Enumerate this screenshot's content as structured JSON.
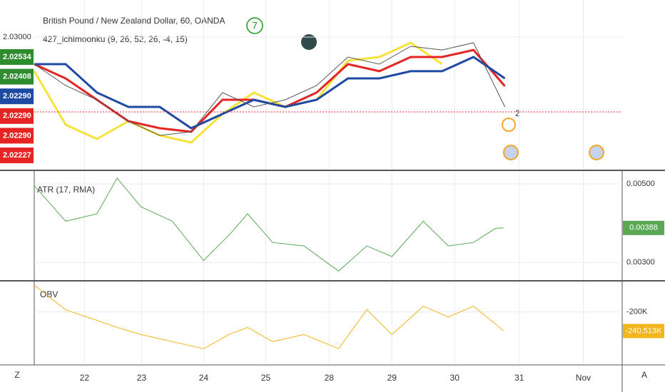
{
  "chart_data": [
    {
      "type": "line",
      "title": "British Pound / New Zealand Dollar, 60, OANDA",
      "subtitle": "427_ichimoonku (9, 26, 52, 26, -4, 15)",
      "xlim": [
        0.2,
        9.57
      ],
      "xticks": [
        {
          "value": 1,
          "label": "22"
        },
        {
          "value": 1.91,
          "label": "23"
        },
        {
          "value": 2.9,
          "label": "24"
        },
        {
          "value": 3.89,
          "label": "25"
        },
        {
          "value": 4.9,
          "label": "28"
        },
        {
          "value": 5.9,
          "label": "29"
        },
        {
          "value": 6.9,
          "label": "30"
        },
        {
          "value": 7.93,
          "label": "31"
        },
        {
          "value": 8.95,
          "label": "Nov"
        }
      ],
      "ylim": [
        2.01742,
        2.03352
      ],
      "yticks": [
        {
          "value": 2.03,
          "label": "2.03000"
        }
      ],
      "x": [
        0.2,
        0.7,
        1.2,
        1.7,
        2.2,
        2.7,
        3.2,
        3.7,
        4.2,
        4.7,
        5.2,
        5.7,
        6.2,
        6.7,
        7.2,
        7.7
      ],
      "series": [
        {
          "color": "#f5e23a",
          "values": [
            2.02676,
            2.02169,
            2.02033,
            2.02202,
            2.02067,
            2.01999,
            2.0227,
            2.02473,
            2.02337,
            2.02405,
            2.02777,
            2.02811,
            2.02946,
            2.02743,
            null,
            null
          ]
        },
        {
          "color": "#e52424",
          "values": [
            2.02743,
            2.02608,
            2.02405,
            2.02202,
            2.02135,
            2.02101,
            2.02405,
            2.02405,
            2.02337,
            2.02473,
            2.02743,
            2.02676,
            2.02811,
            2.02811,
            2.02878,
            2.02534
          ]
        },
        {
          "color": "#1e4aa3",
          "values": [
            2.02743,
            2.02743,
            2.02473,
            2.02337,
            2.02337,
            2.02135,
            2.0227,
            2.02405,
            2.02337,
            2.02405,
            2.02608,
            2.02608,
            2.02676,
            2.02676,
            2.02811,
            2.02608
          ]
        },
        {
          "color": "#555555",
          "values": [
            2.02743,
            2.0254,
            2.02405,
            2.02202,
            2.02067,
            2.02101,
            2.02473,
            2.02337,
            2.02405,
            2.0254,
            2.02811,
            2.02743,
            2.02912,
            2.02878,
            2.02946,
            2.02337
          ]
        }
      ],
      "price_labels": [
        {
          "value": 2.02534,
          "label": "2.02534",
          "color": "#2e8b2e"
        },
        {
          "value": 2.02408,
          "label": "2.02408",
          "color": "#2e8b2e"
        },
        {
          "value": 2.0229,
          "label": "2.02290",
          "color": "#1e4aa3"
        },
        {
          "value": 2.0229,
          "label": "2.02290",
          "color": "#e52424"
        },
        {
          "value": 2.0229,
          "label": "2.02290",
          "color": "#e52424"
        },
        {
          "value": 2.02227,
          "label": "2.02227",
          "color": "#e52424"
        }
      ],
      "annotations": [
        "7",
        "2"
      ]
    },
    {
      "type": "line",
      "title": "ATR (17, RMA)",
      "ylim": [
        0.00255,
        0.00533
      ],
      "yticks": [
        {
          "value": 0.005,
          "label": "0.00500"
        },
        {
          "value": 0.003,
          "label": "0.00300"
        }
      ],
      "x": [
        0.2,
        0.7,
        1.2,
        1.52,
        1.9,
        2.4,
        2.9,
        3.3,
        3.6,
        4.0,
        4.5,
        5.05,
        5.5,
        5.9,
        6.4,
        6.8,
        7.2,
        7.55,
        7.68
      ],
      "color": "#5aa855",
      "values": [
        0.00496,
        0.00405,
        0.00424,
        0.00515,
        0.00442,
        0.00405,
        0.00305,
        0.00369,
        0.00424,
        0.00351,
        0.00342,
        0.00278,
        0.00342,
        0.00315,
        0.00405,
        0.00342,
        0.00351,
        0.00387,
        0.00388
      ],
      "value_labels": [
        null,
        null,
        null,
        null,
        null,
        null,
        null,
        null,
        null,
        null,
        null,
        null,
        null,
        null,
        null,
        null,
        null,
        null,
        "0.00388"
      ]
    },
    {
      "type": "line",
      "title": "OBV",
      "ylim": [
        -311000,
        -135500
      ],
      "yticks": [
        {
          "value": -200000,
          "label": "-200K"
        }
      ],
      "x": [
        0.2,
        0.7,
        1.2,
        1.52,
        1.9,
        2.4,
        2.9,
        3.3,
        3.6,
        4.0,
        4.5,
        5.05,
        5.5,
        5.9,
        6.4,
        6.8,
        7.2,
        7.55,
        7.68
      ],
      "color": "#f2b51d",
      "values": [
        -143000,
        -195500,
        -218000,
        -233000,
        -248000,
        -263000,
        -278000,
        -248000,
        -233000,
        -263000,
        -248000,
        -278000,
        -195500,
        -248000,
        -188000,
        -210500,
        -188000,
        -225500,
        -240513
      ],
      "value_labels": [
        null,
        null,
        null,
        null,
        null,
        null,
        null,
        null,
        null,
        null,
        null,
        null,
        null,
        null,
        null,
        null,
        null,
        null,
        "-240.513K"
      ]
    }
  ],
  "toolbar": {
    "left": "Z",
    "right": "A"
  }
}
